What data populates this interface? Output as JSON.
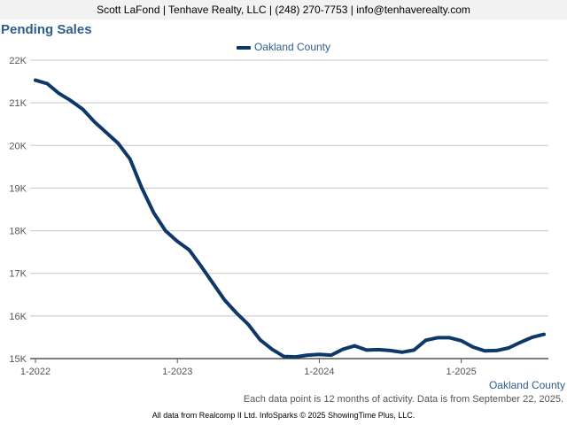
{
  "header": {
    "contact": "Scott LaFond | Tenhave Realty, LLC | (248) 270-7753 | info@tenhaverealty.com"
  },
  "footnote": "Each data point is 12 months of activity. Data is from September 22, 2025.",
  "credits": "All data from Realcomp II Ltd. InfoSparks © 2025 ShowingTime Plus, LLC.",
  "colors": {
    "series": "#0d3868",
    "title": "#2d5d8c",
    "grid": "#c8c8c8",
    "axis": "#555555"
  },
  "chart_data": {
    "type": "line",
    "title": "Pending Sales",
    "legend_position": "top-center",
    "grid": true,
    "ylim": [
      15000,
      22000
    ],
    "xlim": [
      "2022-01",
      "2025-08"
    ],
    "y_ticks": [
      {
        "value": 15000,
        "label": "15K"
      },
      {
        "value": 16000,
        "label": "16K"
      },
      {
        "value": 17000,
        "label": "17K"
      },
      {
        "value": 18000,
        "label": "18K"
      },
      {
        "value": 19000,
        "label": "19K"
      },
      {
        "value": 20000,
        "label": "20K"
      },
      {
        "value": 21000,
        "label": "21K"
      },
      {
        "value": 22000,
        "label": "22K"
      }
    ],
    "x_ticks": [
      {
        "value": "2022-01",
        "label": "1-2022"
      },
      {
        "value": "2023-01",
        "label": "1-2023"
      },
      {
        "value": "2024-01",
        "label": "1-2024"
      },
      {
        "value": "2025-01",
        "label": "1-2025"
      }
    ],
    "x_end_label": "Oakland County",
    "series": [
      {
        "name": "Oakland County",
        "x": [
          "2022-01",
          "2022-02",
          "2022-03",
          "2022-04",
          "2022-05",
          "2022-06",
          "2022-07",
          "2022-08",
          "2022-09",
          "2022-10",
          "2022-11",
          "2022-12",
          "2023-01",
          "2023-02",
          "2023-03",
          "2023-04",
          "2023-05",
          "2023-06",
          "2023-07",
          "2023-08",
          "2023-09",
          "2023-10",
          "2023-11",
          "2023-12",
          "2024-01",
          "2024-02",
          "2024-03",
          "2024-04",
          "2024-05",
          "2024-06",
          "2024-07",
          "2024-08",
          "2024-09",
          "2024-10",
          "2024-11",
          "2024-12",
          "2025-01",
          "2025-02",
          "2025-03",
          "2025-04",
          "2025-05",
          "2025-06",
          "2025-07",
          "2025-08"
        ],
        "values": [
          21530,
          21450,
          21220,
          21050,
          20850,
          20550,
          20300,
          20050,
          19680,
          19000,
          18420,
          18000,
          17750,
          17550,
          17170,
          16770,
          16370,
          16070,
          15800,
          15440,
          15220,
          15050,
          15040,
          15080,
          15100,
          15080,
          15220,
          15300,
          15200,
          15210,
          15190,
          15150,
          15200,
          15430,
          15490,
          15490,
          15420,
          15270,
          15180,
          15190,
          15250,
          15380,
          15500,
          15570
        ]
      }
    ]
  }
}
